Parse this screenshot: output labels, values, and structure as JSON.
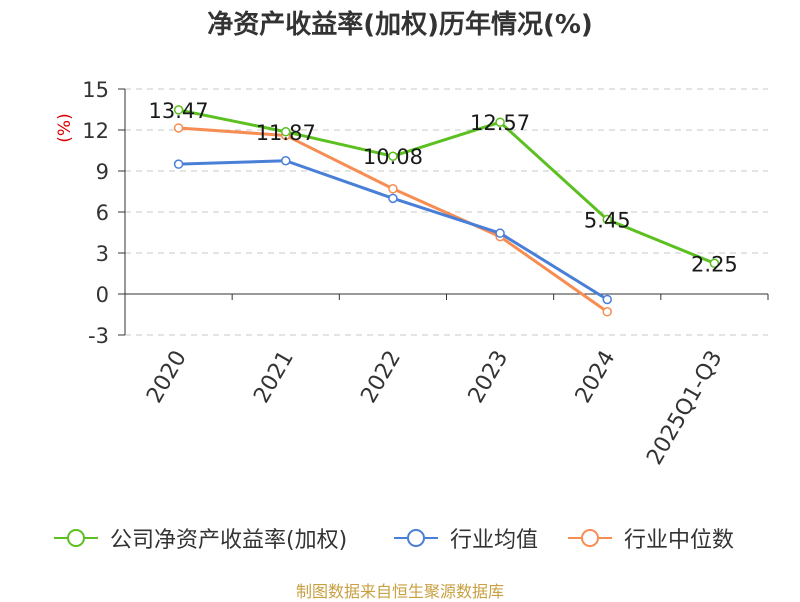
{
  "header": {
    "title": "净资产收益率(加权)历年情况(%)"
  },
  "chart_data": {
    "type": "line",
    "title": "净资产收益率(加权)历年情况(%)",
    "ylabel": "(%)",
    "xlabel": "",
    "ylim": [
      -3,
      15
    ],
    "yticks": [
      -3,
      0,
      3,
      6,
      9,
      12,
      15
    ],
    "ytick_labels": [
      "-3",
      "0",
      "3",
      "6",
      "9",
      "12",
      "15"
    ],
    "categories": [
      "2020",
      "2021",
      "2022",
      "2023",
      "2024",
      "2025Q1-Q3"
    ],
    "grid": true,
    "legend_position": "bottom",
    "series": [
      {
        "name": "公司净资产收益率(加权)",
        "color": "#5cc021",
        "values": [
          13.47,
          11.87,
          10.08,
          12.57,
          5.45,
          2.25
        ],
        "labels": [
          "13.47",
          "11.87",
          "10.08",
          "12.57",
          "5.45",
          "2.25"
        ]
      },
      {
        "name": "行业均值",
        "color": "#4a7fd8",
        "values": [
          9.5,
          9.75,
          7.0,
          4.45,
          -0.4,
          null
        ]
      },
      {
        "name": "行业中位数",
        "color": "#f78d52",
        "values": [
          12.15,
          11.6,
          7.7,
          4.2,
          -1.3,
          null
        ]
      }
    ]
  },
  "source": {
    "text": "制图数据来自恒生聚源数据库"
  }
}
